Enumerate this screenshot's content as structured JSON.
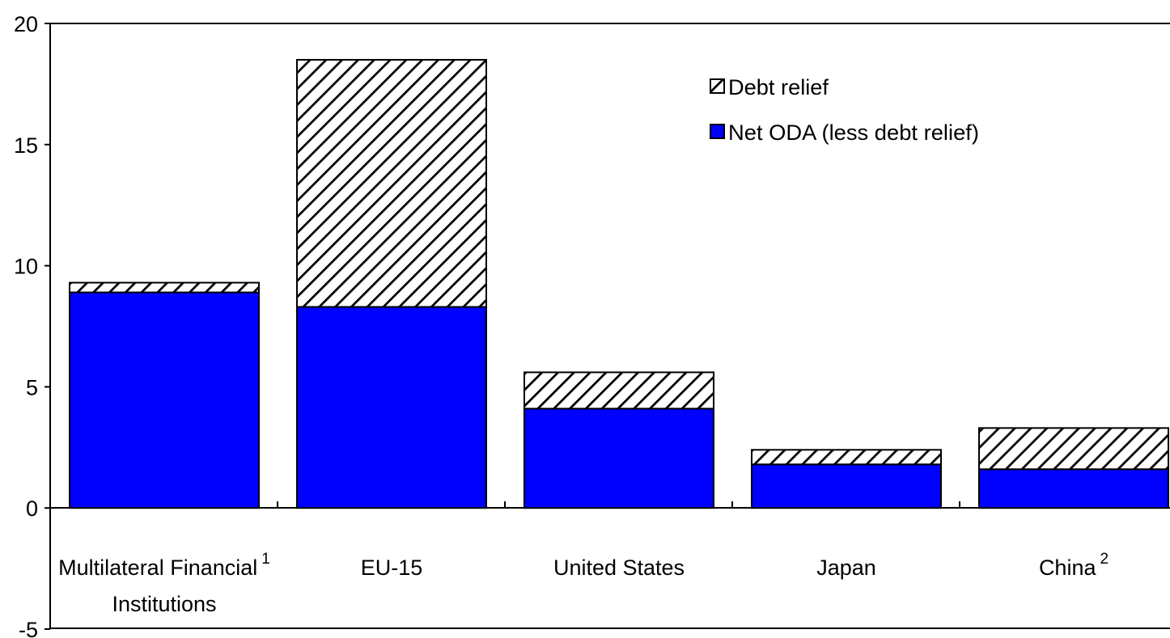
{
  "chart_data": {
    "type": "bar",
    "stacked": true,
    "categories": [
      {
        "line1": "Multilateral Financial",
        "sup": "1",
        "line2": "Institutions"
      },
      {
        "line1": "EU-15",
        "sup": "",
        "line2": ""
      },
      {
        "line1": "United States",
        "sup": "",
        "line2": ""
      },
      {
        "line1": "Japan",
        "sup": "",
        "line2": ""
      },
      {
        "line1": "China",
        "sup": "2",
        "line2": ""
      }
    ],
    "series": [
      {
        "name": "Net ODA (less debt relief)",
        "values": [
          8.9,
          8.3,
          4.1,
          1.8,
          1.6
        ],
        "color": "#0000ff",
        "pattern": "solid"
      },
      {
        "name": "Debt relief",
        "values": [
          0.4,
          10.2,
          1.5,
          0.6,
          1.7
        ],
        "color": "#ffffff",
        "pattern": "diagonal-hatch"
      }
    ],
    "legend": {
      "order": [
        "Debt relief",
        "Net ODA (less debt relief)"
      ],
      "position": "top-right"
    },
    "yticks": [
      "20",
      "15",
      "10",
      "5",
      "0",
      "-5"
    ],
    "ylim": [
      -5,
      20
    ],
    "grid": false,
    "title": "",
    "xlabel": "",
    "ylabel": ""
  }
}
